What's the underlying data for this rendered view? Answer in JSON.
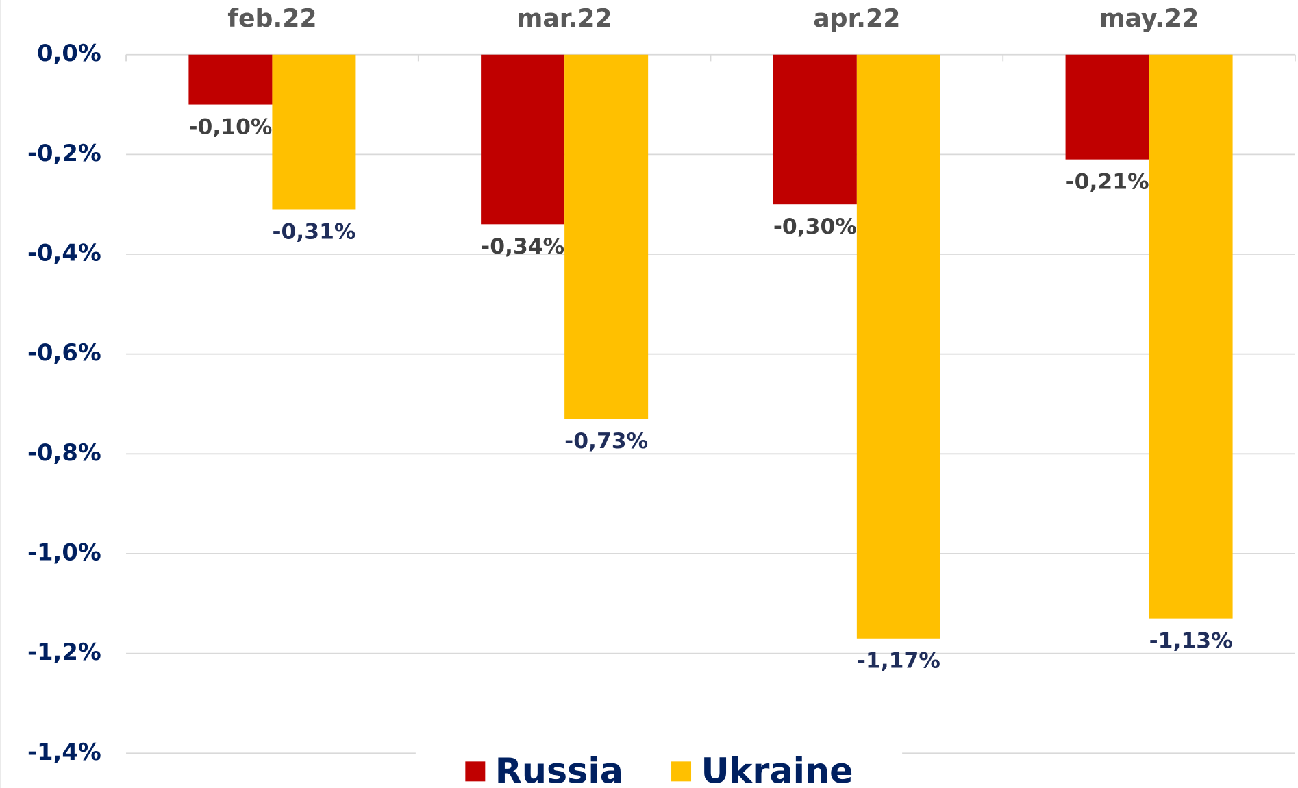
{
  "chart_data": {
    "type": "bar",
    "categories": [
      "feb.22",
      "mar.22",
      "apr.22",
      "may.22"
    ],
    "series": [
      {
        "name": "Russia",
        "color": "#c00000",
        "values": [
          -0.1,
          -0.34,
          -0.3,
          -0.21
        ],
        "value_labels": [
          "-0,10%",
          "-0,34%",
          "-0,30%",
          "-0,21%"
        ]
      },
      {
        "name": "Ukraine",
        "color": "#ffc000",
        "values": [
          -0.31,
          -0.73,
          -1.17,
          -1.13
        ],
        "value_labels": [
          "-0,31%",
          "-0,73%",
          "-1,17%",
          "-1,13%"
        ]
      }
    ],
    "ylim": [
      -1.4,
      0
    ],
    "yticks": [
      {
        "value": 0,
        "label": "0,0%"
      },
      {
        "value": -0.2,
        "label": "-0,2%"
      },
      {
        "value": -0.4,
        "label": "-0,4%"
      },
      {
        "value": -0.6,
        "label": "-0,6%"
      },
      {
        "value": -0.8,
        "label": "-0,8%"
      },
      {
        "value": -1.0,
        "label": "-1,0%"
      },
      {
        "value": -1.2,
        "label": "-1,2%"
      },
      {
        "value": -1.4,
        "label": "-1,4%"
      }
    ],
    "grid": true,
    "legend": "bottom"
  }
}
